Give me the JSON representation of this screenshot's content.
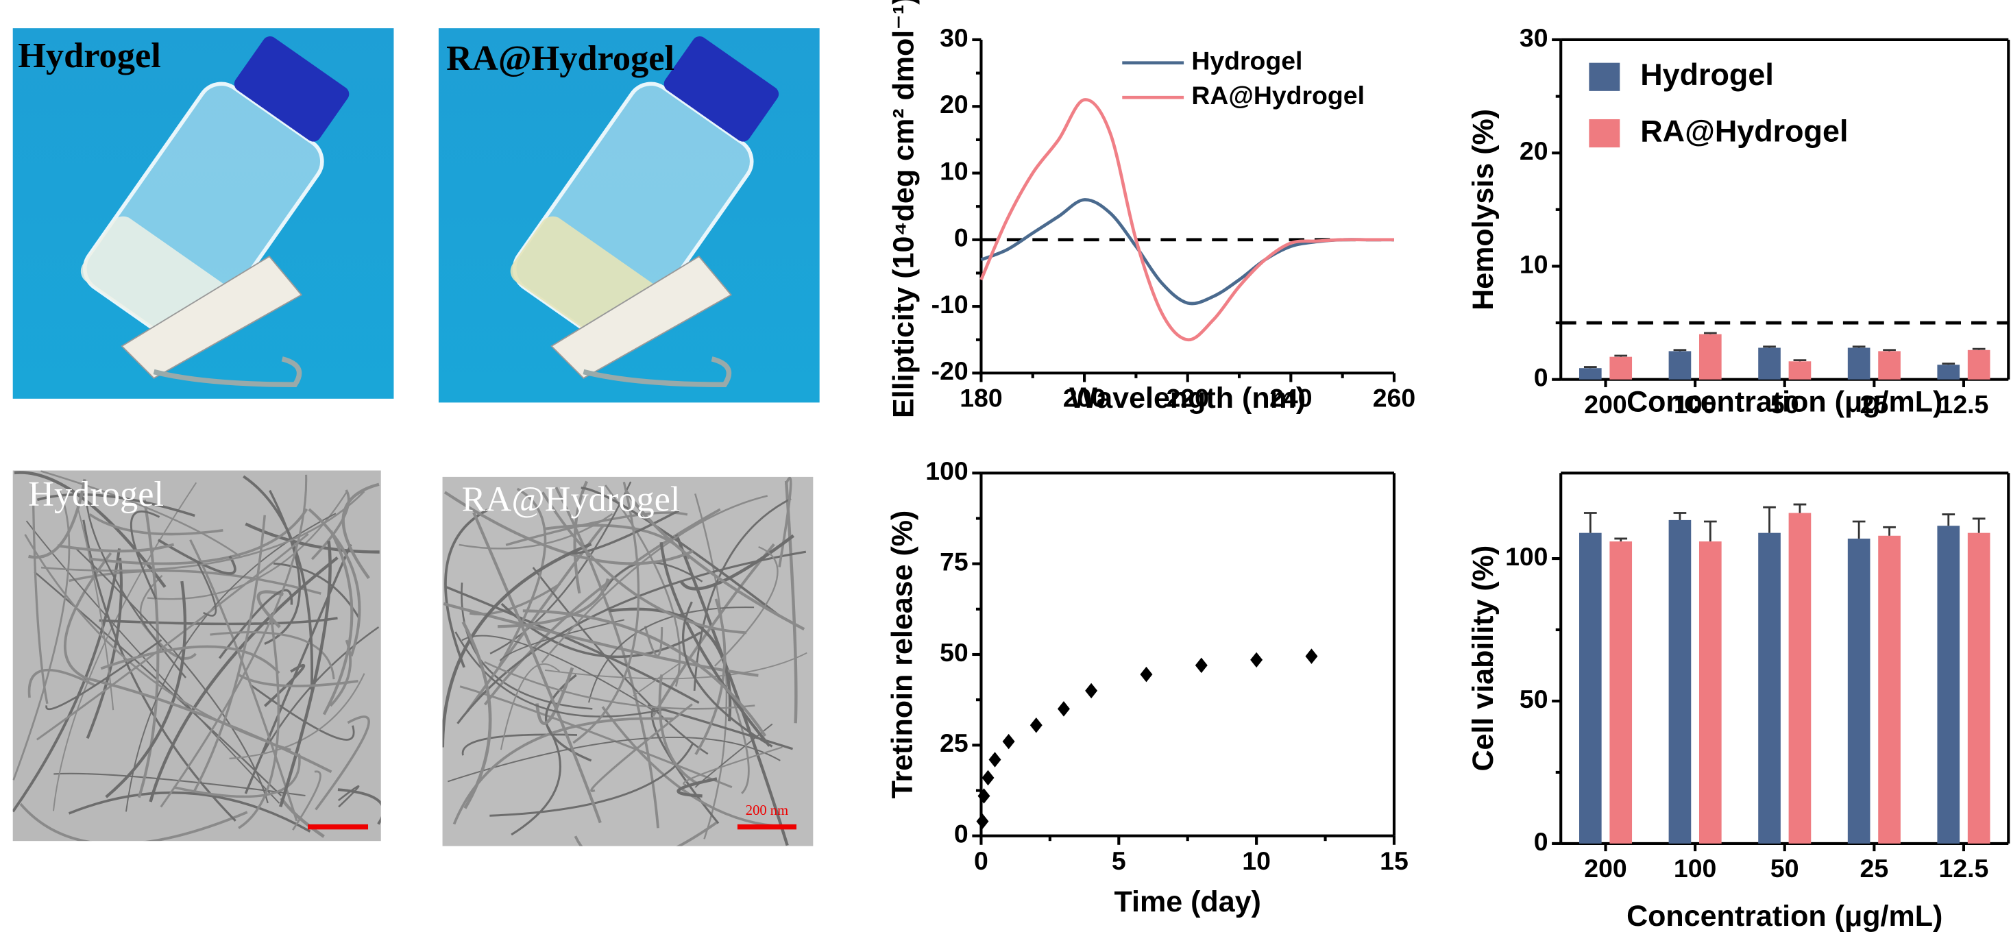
{
  "images": [
    {
      "label": "Hydrogel"
    },
    {
      "label": "RA@Hydrogel"
    },
    {
      "label": "Hydrogel"
    },
    {
      "label": "RA@Hydrogel",
      "scale_bar": "200 nm"
    }
  ],
  "chart_data": [
    {
      "type": "line",
      "xlabel": "Wavelength (nm)",
      "ylabel": "Ellipticity (10⁴deg cm² dmol⁻¹)",
      "x": [
        180,
        185,
        190,
        195,
        200,
        205,
        210,
        215,
        220,
        225,
        230,
        235,
        240,
        245,
        250,
        255,
        260
      ],
      "series": [
        {
          "name": "Hydrogel",
          "color": "#4a6a8e",
          "values": [
            -3,
            -1.5,
            1,
            3.5,
            6,
            4,
            -1,
            -6.5,
            -9.5,
            -8.5,
            -6,
            -3,
            -1,
            -0.3,
            0,
            0,
            0
          ]
        },
        {
          "name": "RA@Hydrogel",
          "color": "#f07f86",
          "values": [
            -6,
            3,
            10,
            15,
            21,
            16,
            0,
            -11,
            -15,
            -12,
            -7,
            -3,
            -0.5,
            -0.2,
            0,
            0,
            0
          ]
        }
      ],
      "xlim": [
        180,
        260
      ],
      "xticks": [
        180,
        200,
        220,
        240,
        260
      ],
      "ylim": [
        -20,
        30
      ],
      "yticks": [
        -20,
        -10,
        0,
        10,
        20,
        30
      ],
      "reference_line": 0,
      "legend": "upper right",
      "box": false
    },
    {
      "type": "scatter",
      "xlabel": "Time (day)",
      "ylabel": "Tretinoin release (%)",
      "x": [
        0.05,
        0.1,
        0.25,
        0.5,
        1,
        2,
        3,
        4,
        6,
        8,
        10,
        12
      ],
      "values": [
        4,
        11,
        16,
        21,
        26,
        30.5,
        35,
        40,
        44.5,
        47,
        48.5,
        49.5
      ],
      "color": "#000000",
      "marker": "diamond",
      "xlim": [
        0,
        15
      ],
      "xticks": [
        0,
        5,
        10,
        15
      ],
      "ylim": [
        0,
        100
      ],
      "yticks": [
        0,
        25,
        50,
        75,
        100
      ],
      "box": true
    },
    {
      "type": "bar",
      "xlabel": "Concentration (μg/mL)",
      "ylabel": "Hemolysis (%)",
      "categories": [
        "200",
        "100",
        "50",
        "25",
        "12.5"
      ],
      "series": [
        {
          "name": "Hydrogel",
          "color": "#4a6590",
          "values": [
            1.0,
            2.5,
            2.8,
            2.8,
            1.3
          ],
          "errors": [
            0.1,
            0.1,
            0.1,
            0.1,
            0.1
          ]
        },
        {
          "name": "RA@Hydrogel",
          "color": "#ef7b80",
          "values": [
            2.0,
            4.0,
            1.6,
            2.5,
            2.6
          ],
          "errors": [
            0.1,
            0.1,
            0.1,
            0.1,
            0.1
          ]
        }
      ],
      "ylim": [
        0,
        30
      ],
      "yticks": [
        0,
        10,
        20,
        30
      ],
      "reference_line": 5,
      "legend": "upper left",
      "box": true
    },
    {
      "type": "bar",
      "xlabel": "Concentration (μg/mL)",
      "ylabel": "Cell viability (%)",
      "categories": [
        "200",
        "100",
        "50",
        "25",
        "12.5"
      ],
      "series": [
        {
          "color": "#4a6590",
          "values": [
            109,
            113.5,
            109,
            107,
            111.5
          ],
          "errors": [
            7,
            2.5,
            9,
            6,
            4
          ]
        },
        {
          "color": "#ef7b80",
          "values": [
            106,
            106,
            116,
            108,
            109
          ],
          "errors": [
            1,
            7,
            3,
            3,
            5
          ]
        }
      ],
      "ylim": [
        0,
        130
      ],
      "yticks": [
        0,
        50,
        100
      ],
      "box": true
    }
  ]
}
